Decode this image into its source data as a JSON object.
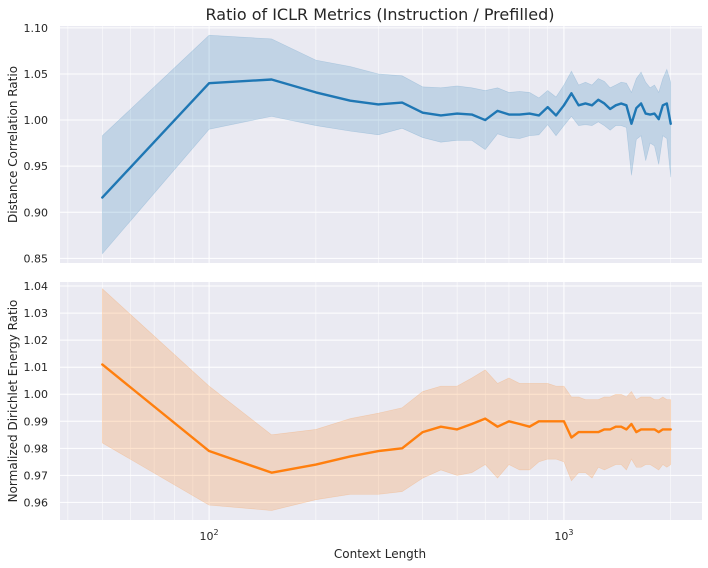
{
  "chart_data": {
    "title": "Ratio of ICLR Metrics (Instruction / Prefilled)",
    "xlabel": "Context Length",
    "x_scale": "log",
    "xlim": [
      38,
      2450
    ],
    "x_ticks": [
      {
        "value": 100,
        "base": "10",
        "exp": "2"
      },
      {
        "value": 1000,
        "base": "10",
        "exp": "3"
      }
    ],
    "x": [
      50,
      100,
      150,
      200,
      250,
      300,
      350,
      400,
      450,
      500,
      550,
      600,
      650,
      700,
      750,
      800,
      850,
      900,
      950,
      1000,
      1050,
      1100,
      1150,
      1200,
      1250,
      1300,
      1350,
      1400,
      1450,
      1500,
      1550,
      1600,
      1650,
      1700,
      1750,
      1800,
      1850,
      1900,
      1950,
      2000
    ],
    "panels": [
      {
        "type": "line",
        "ylabel": "Distance Correlation Ratio",
        "ylim": [
          0.845,
          1.102
        ],
        "yticks": [
          0.85,
          0.9,
          0.95,
          1.0,
          1.05,
          1.1
        ],
        "tick_labels": [
          "0.85",
          "0.90",
          "0.95",
          "1.00",
          "1.05",
          "1.10"
        ],
        "color": "#1f77b4",
        "series_name": "Distance Correlation Ratio",
        "mean": [
          0.916,
          1.04,
          1.044,
          1.03,
          1.021,
          1.017,
          1.019,
          1.008,
          1.005,
          1.007,
          1.006,
          1.0,
          1.01,
          1.006,
          1.006,
          1.007,
          1.005,
          1.014,
          1.005,
          1.016,
          1.029,
          1.016,
          1.018,
          1.016,
          1.022,
          1.018,
          1.012,
          1.016,
          1.018,
          1.016,
          0.996,
          1.013,
          1.018,
          1.007,
          1.006,
          1.007,
          1.001,
          1.016,
          1.018,
          0.996
        ],
        "upper": [
          0.983,
          1.092,
          1.088,
          1.065,
          1.058,
          1.05,
          1.048,
          1.036,
          1.035,
          1.037,
          1.035,
          1.032,
          1.035,
          1.03,
          1.031,
          1.03,
          1.024,
          1.032,
          1.025,
          1.038,
          1.053,
          1.038,
          1.041,
          1.038,
          1.045,
          1.042,
          1.035,
          1.038,
          1.041,
          1.04,
          1.03,
          1.045,
          1.052,
          1.041,
          1.035,
          1.038,
          1.03,
          1.045,
          1.055,
          1.041
        ],
        "lower": [
          0.855,
          0.99,
          1.004,
          0.994,
          0.988,
          0.984,
          0.991,
          0.981,
          0.976,
          0.978,
          0.978,
          0.968,
          0.985,
          0.981,
          0.98,
          0.983,
          0.984,
          0.995,
          0.983,
          0.994,
          1.004,
          0.994,
          0.995,
          0.994,
          0.998,
          0.994,
          0.989,
          0.994,
          0.994,
          0.992,
          0.94,
          0.979,
          0.983,
          0.956,
          0.975,
          0.972,
          0.952,
          0.983,
          0.98,
          0.938
        ]
      },
      {
        "type": "line",
        "ylabel": "Normalized Dirichlet Energy Ratio",
        "ylim": [
          0.9535,
          1.0415
        ],
        "yticks": [
          0.96,
          0.97,
          0.98,
          0.99,
          1.0,
          1.01,
          1.02,
          1.03,
          1.04
        ],
        "tick_labels": [
          "0.96",
          "0.97",
          "0.98",
          "0.99",
          "1.00",
          "1.01",
          "1.02",
          "1.03",
          "1.04"
        ],
        "color": "#ff7f0e",
        "series_name": "Normalized Dirichlet Energy Ratio",
        "mean": [
          1.011,
          0.979,
          0.971,
          0.974,
          0.977,
          0.979,
          0.98,
          0.986,
          0.988,
          0.987,
          0.989,
          0.991,
          0.988,
          0.99,
          0.989,
          0.988,
          0.99,
          0.99,
          0.99,
          0.99,
          0.984,
          0.986,
          0.986,
          0.986,
          0.986,
          0.987,
          0.987,
          0.988,
          0.988,
          0.987,
          0.989,
          0.986,
          0.987,
          0.987,
          0.987,
          0.987,
          0.986,
          0.987,
          0.987,
          0.987
        ],
        "upper": [
          1.039,
          1.003,
          0.985,
          0.987,
          0.991,
          0.993,
          0.995,
          1.001,
          1.003,
          1.003,
          1.006,
          1.009,
          1.004,
          1.006,
          1.004,
          1.004,
          1.004,
          1.004,
          1.003,
          1.003,
          0.999,
          0.999,
          0.998,
          0.998,
          0.998,
          0.999,
          0.999,
          1.0,
          1.0,
          0.999,
          1.001,
          0.998,
          0.999,
          0.999,
          0.999,
          0.998,
          0.998,
          0.999,
          0.998,
          0.998
        ],
        "lower": [
          0.982,
          0.959,
          0.957,
          0.961,
          0.963,
          0.963,
          0.964,
          0.969,
          0.972,
          0.97,
          0.971,
          0.974,
          0.969,
          0.974,
          0.972,
          0.972,
          0.975,
          0.976,
          0.976,
          0.975,
          0.968,
          0.971,
          0.971,
          0.969,
          0.973,
          0.972,
          0.973,
          0.974,
          0.974,
          0.972,
          0.976,
          0.973,
          0.973,
          0.974,
          0.974,
          0.973,
          0.972,
          0.974,
          0.973,
          0.974
        ]
      }
    ]
  }
}
